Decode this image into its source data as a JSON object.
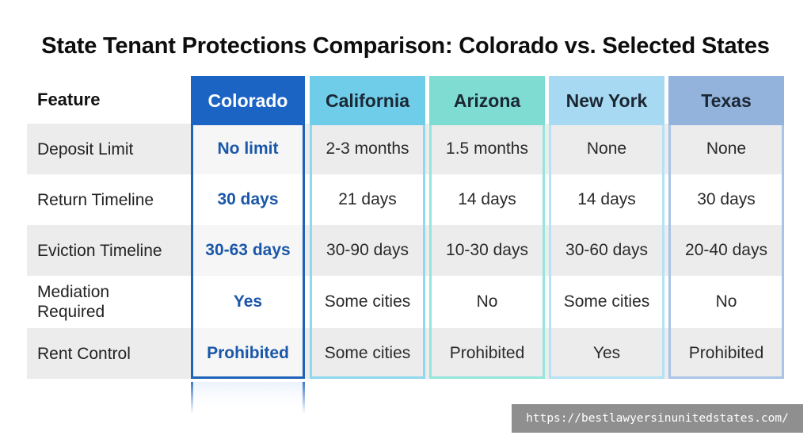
{
  "title": "State Tenant Protections Comparison: Colorado vs. Selected States",
  "feature_header": "Feature",
  "features": [
    "Deposit Limit",
    "Return Timeline",
    "Eviction Timeline",
    "Mediation Required",
    "Rent Control"
  ],
  "states": [
    {
      "name": "Colorado",
      "values": [
        "No limit",
        "30 days",
        "30-63 days",
        "Yes",
        "Prohibited"
      ]
    },
    {
      "name": "California",
      "values": [
        "2-3 months",
        "21 days",
        "30-90 days",
        "Some cities",
        "Some cities"
      ]
    },
    {
      "name": "Arizona",
      "values": [
        "1.5 months",
        "14 days",
        "10-30 days",
        "No",
        "Prohibited"
      ]
    },
    {
      "name": "New York",
      "values": [
        "None",
        "14 days",
        "30-60 days",
        "Some cities",
        "Yes"
      ]
    },
    {
      "name": "Texas",
      "values": [
        "None",
        "30 days",
        "20-40 days",
        "No",
        "Prohibited"
      ]
    }
  ],
  "colors": {
    "colorado_accent": "#1c64c4",
    "california_header": "#6fcde9",
    "arizona_header": "#7fdcd2",
    "new_york_header": "#a7daf2",
    "texas_header": "#93b3dd",
    "row_shade": "#ececec"
  },
  "watermark_url": "https://bestlawyersinunitedstates.com/"
}
